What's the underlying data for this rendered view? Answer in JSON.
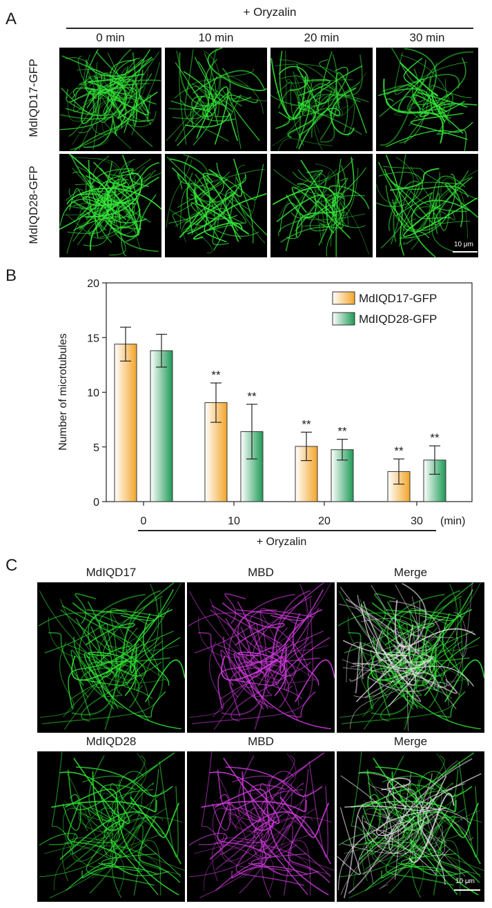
{
  "panel_a": {
    "letter": "A",
    "treatment_label": "+ Oryzalin",
    "time_headers": [
      "0 min",
      "10 min",
      "20 min",
      "30 min"
    ],
    "row_labels": [
      "MdIQD17-GFP",
      "MdIQD28-GFP"
    ],
    "scale_bar": "10 μm",
    "channel_color": "#35e83a"
  },
  "panel_b": {
    "letter": "B"
  },
  "chart_data": {
    "type": "bar",
    "categories": [
      "0",
      "10",
      "20",
      "30"
    ],
    "x_unit": "(min)",
    "xlabel": "+ Oryzalin",
    "ylabel": "Number of microtubules",
    "ylim": [
      0,
      20
    ],
    "yticks": [
      0,
      5,
      10,
      15,
      20
    ],
    "legend_position": "top-right",
    "grid": false,
    "series": [
      {
        "name": "MdIQD17-GFP",
        "color": "#f3a52a",
        "values": [
          14.4,
          9.05,
          5.05,
          2.75
        ],
        "errors": [
          1.55,
          1.8,
          1.3,
          1.15
        ],
        "significance": [
          "",
          "**",
          "**",
          "**"
        ]
      },
      {
        "name": "MdIQD28-GFP",
        "color": "#1e9a56",
        "values": [
          13.8,
          6.4,
          4.75,
          3.8
        ],
        "errors": [
          1.5,
          2.5,
          0.95,
          1.3
        ],
        "significance": [
          "",
          "**",
          "**",
          "**"
        ]
      }
    ]
  },
  "panel_c": {
    "letter": "C",
    "row1_headers": [
      "MdIQD17",
      "MBD",
      "Merge"
    ],
    "row2_headers": [
      "MdIQD28",
      "MBD",
      "Merge"
    ],
    "scale_bar": "10 μm",
    "colors": {
      "green": "#30e336",
      "magenta": "#d23be0",
      "merge": "#f2e6f2"
    }
  }
}
